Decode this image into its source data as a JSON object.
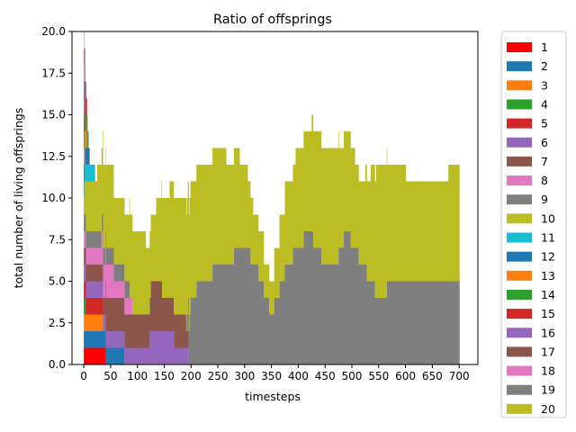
{
  "chart_data": {
    "type": "area",
    "stacked": true,
    "title": "Ratio of offsprings",
    "xlabel": "timesteps",
    "ylabel": "total number of living offsprings",
    "xlim": [
      -22,
      735
    ],
    "ylim": [
      0,
      20
    ],
    "x_ticks": [
      0,
      50,
      100,
      150,
      200,
      250,
      300,
      350,
      400,
      450,
      500,
      550,
      600,
      650,
      700
    ],
    "y_ticks": [
      0.0,
      2.5,
      5.0,
      7.5,
      10.0,
      12.5,
      15.0,
      17.5,
      20.0
    ],
    "legend_position": "outside-right",
    "series": [
      {
        "name": "1",
        "color": "#ff0000",
        "points": [
          [
            0,
            1
          ],
          [
            40,
            1
          ],
          [
            41,
            0
          ],
          [
            700,
            0
          ]
        ]
      },
      {
        "name": "2",
        "color": "#1f77b4",
        "points": [
          [
            0,
            1
          ],
          [
            40,
            1
          ],
          [
            41,
            1
          ],
          [
            75,
            1
          ],
          [
            76,
            0
          ],
          [
            700,
            0
          ]
        ]
      },
      {
        "name": "3",
        "color": "#ff7f0e",
        "points": [
          [
            0,
            1
          ],
          [
            35,
            1
          ],
          [
            36,
            0
          ],
          [
            700,
            0
          ]
        ]
      },
      {
        "name": "4",
        "color": "#2ca02c",
        "points": [
          [
            0,
            1
          ],
          [
            3,
            1
          ],
          [
            4,
            0
          ],
          [
            700,
            0
          ]
        ]
      },
      {
        "name": "5",
        "color": "#d62728",
        "points": [
          [
            0,
            1
          ],
          [
            35,
            1
          ],
          [
            36,
            0
          ],
          [
            700,
            0
          ]
        ]
      },
      {
        "name": "6",
        "color": "#9467bd",
        "points": [
          [
            0,
            1
          ],
          [
            40,
            1
          ],
          [
            41,
            1
          ],
          [
            75,
            1
          ],
          [
            80,
            1
          ],
          [
            120,
            1
          ],
          [
            125,
            2
          ],
          [
            165,
            2
          ],
          [
            170,
            1
          ],
          [
            195,
            1
          ],
          [
            196,
            0
          ],
          [
            700,
            0
          ]
        ]
      },
      {
        "name": "7",
        "color": "#8c564b",
        "points": [
          [
            0,
            1
          ],
          [
            15,
            1
          ],
          [
            20,
            1
          ],
          [
            60,
            2
          ],
          [
            90,
            2
          ],
          [
            120,
            2
          ],
          [
            130,
            3
          ],
          [
            160,
            2
          ],
          [
            185,
            2
          ],
          [
            195,
            1
          ],
          [
            196,
            0
          ],
          [
            700,
            0
          ]
        ]
      },
      {
        "name": "8",
        "color": "#e377c2",
        "points": [
          [
            0,
            1
          ],
          [
            15,
            1
          ],
          [
            25,
            1
          ],
          [
            40,
            2
          ],
          [
            70,
            1
          ],
          [
            90,
            1
          ],
          [
            91,
            0
          ],
          [
            700,
            0
          ]
        ]
      },
      {
        "name": "9",
        "color": "#7f7f7f",
        "points": [
          [
            0,
            1
          ],
          [
            30,
            1
          ],
          [
            40,
            1
          ],
          [
            70,
            1
          ],
          [
            100,
            0
          ],
          [
            190,
            0
          ],
          [
            200,
            4
          ],
          [
            220,
            5
          ],
          [
            260,
            6
          ],
          [
            300,
            7
          ],
          [
            320,
            6
          ],
          [
            350,
            3
          ],
          [
            380,
            6
          ],
          [
            420,
            8
          ],
          [
            450,
            6
          ],
          [
            470,
            6
          ],
          [
            490,
            8
          ],
          [
            520,
            6
          ],
          [
            550,
            4
          ],
          [
            580,
            5
          ],
          [
            620,
            5
          ],
          [
            660,
            5
          ],
          [
            700,
            5
          ]
        ]
      },
      {
        "name": "10",
        "color": "#bcbd22",
        "points": [
          [
            0,
            1
          ],
          [
            5,
            3
          ],
          [
            20,
            3
          ],
          [
            40,
            5
          ],
          [
            70,
            4
          ],
          [
            100,
            5
          ],
          [
            130,
            4
          ],
          [
            150,
            6
          ],
          [
            170,
            7
          ],
          [
            200,
            7
          ],
          [
            250,
            7
          ],
          [
            280,
            6
          ],
          [
            300,
            5
          ],
          [
            320,
            3
          ],
          [
            350,
            2
          ],
          [
            380,
            5
          ],
          [
            410,
            6
          ],
          [
            440,
            7
          ],
          [
            460,
            7
          ],
          [
            490,
            6
          ],
          [
            520,
            5
          ],
          [
            550,
            8
          ],
          [
            580,
            7
          ],
          [
            620,
            6
          ],
          [
            660,
            6
          ],
          [
            700,
            7
          ]
        ]
      },
      {
        "name": "11",
        "color": "#17becf",
        "points": [
          [
            0,
            1
          ],
          [
            20,
            1
          ],
          [
            21,
            0
          ],
          [
            700,
            0
          ]
        ]
      },
      {
        "name": "12",
        "color": "#1f77b4",
        "points": [
          [
            0,
            1
          ],
          [
            10,
            1
          ],
          [
            11,
            0
          ],
          [
            700,
            0
          ]
        ]
      },
      {
        "name": "13",
        "color": "#ff7f0e",
        "points": [
          [
            0,
            1
          ],
          [
            5,
            1
          ],
          [
            6,
            0
          ],
          [
            700,
            0
          ]
        ]
      },
      {
        "name": "14",
        "color": "#2ca02c",
        "points": [
          [
            0,
            1
          ],
          [
            8,
            1
          ],
          [
            9,
            0
          ],
          [
            700,
            0
          ]
        ]
      },
      {
        "name": "15",
        "color": "#d62728",
        "points": [
          [
            0,
            1
          ],
          [
            6,
            1
          ],
          [
            7,
            0
          ],
          [
            700,
            0
          ]
        ]
      },
      {
        "name": "16",
        "color": "#9467bd",
        "points": [
          [
            0,
            1
          ],
          [
            4,
            1
          ],
          [
            5,
            0
          ],
          [
            700,
            0
          ]
        ]
      },
      {
        "name": "17",
        "color": "#8c564b",
        "points": [
          [
            0,
            1
          ],
          [
            2,
            1
          ],
          [
            3,
            0
          ],
          [
            700,
            0
          ]
        ]
      },
      {
        "name": "18",
        "color": "#e377c2",
        "points": [
          [
            0,
            1
          ],
          [
            2,
            1
          ],
          [
            3,
            0
          ],
          [
            700,
            0
          ]
        ]
      },
      {
        "name": "19",
        "color": "#7f7f7f",
        "points": [
          [
            0,
            1
          ],
          [
            1,
            1
          ],
          [
            2,
            0
          ],
          [
            700,
            0
          ]
        ]
      },
      {
        "name": "20",
        "color": "#bcbd22",
        "points": [
          [
            0,
            1
          ],
          [
            1,
            0
          ],
          [
            700,
            0
          ]
        ]
      }
    ]
  }
}
